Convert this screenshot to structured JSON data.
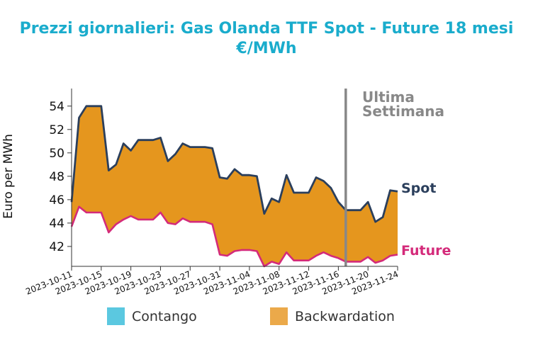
{
  "chart_data": {
    "type": "area",
    "title_line1": "Prezzi giornalieri: Gas Olanda TTF Spot - Future 18 mesi",
    "title_line2": "€/MWh",
    "ylabel": "Euro per MWh",
    "xlabel": "",
    "ylim": [
      40.3,
      55.5
    ],
    "yticks": [
      42,
      44,
      46,
      48,
      50,
      52,
      54
    ],
    "xlim": [
      "2023-10-11",
      "2023-11-24"
    ],
    "xticks": [
      "2023-10-11",
      "2023-10-15",
      "2023-10-19",
      "2023-10-23",
      "2023-10-27",
      "2023-10-31",
      "2023-11-04",
      "2023-11-08",
      "2023-11-12",
      "2023-11-16",
      "2023-11-20",
      "2023-11-24"
    ],
    "series": [
      {
        "name": "Spot",
        "color": "#2b3f5c",
        "points": [
          [
            "2023-10-11",
            45.8
          ],
          [
            "2023-10-12",
            53.0
          ],
          [
            "2023-10-13",
            54.0
          ],
          [
            "2023-10-14",
            54.0
          ],
          [
            "2023-10-15",
            54.0
          ],
          [
            "2023-10-16",
            48.5
          ],
          [
            "2023-10-17",
            49.0
          ],
          [
            "2023-10-18",
            50.8
          ],
          [
            "2023-10-19",
            50.2
          ],
          [
            "2023-10-20",
            51.1
          ],
          [
            "2023-10-21",
            51.1
          ],
          [
            "2023-10-22",
            51.1
          ],
          [
            "2023-10-23",
            51.3
          ],
          [
            "2023-10-24",
            49.3
          ],
          [
            "2023-10-25",
            49.9
          ],
          [
            "2023-10-26",
            50.8
          ],
          [
            "2023-10-27",
            50.5
          ],
          [
            "2023-10-28",
            50.5
          ],
          [
            "2023-10-29",
            50.5
          ],
          [
            "2023-10-30",
            50.4
          ],
          [
            "2023-10-31",
            47.9
          ],
          [
            "2023-11-01",
            47.8
          ],
          [
            "2023-11-02",
            48.6
          ],
          [
            "2023-11-03",
            48.1
          ],
          [
            "2023-11-04",
            48.1
          ],
          [
            "2023-11-05",
            48.0
          ],
          [
            "2023-11-06",
            44.8
          ],
          [
            "2023-11-07",
            46.1
          ],
          [
            "2023-11-08",
            45.8
          ],
          [
            "2023-11-09",
            48.1
          ],
          [
            "2023-11-10",
            46.6
          ],
          [
            "2023-11-11",
            46.6
          ],
          [
            "2023-11-12",
            46.6
          ],
          [
            "2023-11-13",
            47.9
          ],
          [
            "2023-11-14",
            47.6
          ],
          [
            "2023-11-15",
            47.0
          ],
          [
            "2023-11-16",
            45.8
          ],
          [
            "2023-11-17",
            45.1
          ],
          [
            "2023-11-18",
            45.1
          ],
          [
            "2023-11-19",
            45.1
          ],
          [
            "2023-11-20",
            45.8
          ],
          [
            "2023-11-21",
            44.1
          ],
          [
            "2023-11-22",
            44.5
          ],
          [
            "2023-11-23",
            46.8
          ],
          [
            "2023-11-24",
            46.7
          ]
        ]
      },
      {
        "name": "Future",
        "color": "#d42a7a",
        "points": [
          [
            "2023-10-11",
            43.7
          ],
          [
            "2023-10-12",
            45.4
          ],
          [
            "2023-10-13",
            44.9
          ],
          [
            "2023-10-14",
            44.9
          ],
          [
            "2023-10-15",
            44.9
          ],
          [
            "2023-10-16",
            43.2
          ],
          [
            "2023-10-17",
            43.9
          ],
          [
            "2023-10-18",
            44.3
          ],
          [
            "2023-10-19",
            44.6
          ],
          [
            "2023-10-20",
            44.3
          ],
          [
            "2023-10-21",
            44.3
          ],
          [
            "2023-10-22",
            44.3
          ],
          [
            "2023-10-23",
            44.9
          ],
          [
            "2023-10-24",
            44.0
          ],
          [
            "2023-10-25",
            43.9
          ],
          [
            "2023-10-26",
            44.4
          ],
          [
            "2023-10-27",
            44.1
          ],
          [
            "2023-10-28",
            44.1
          ],
          [
            "2023-10-29",
            44.1
          ],
          [
            "2023-10-30",
            43.9
          ],
          [
            "2023-10-31",
            41.3
          ],
          [
            "2023-11-01",
            41.2
          ],
          [
            "2023-11-02",
            41.6
          ],
          [
            "2023-11-03",
            41.7
          ],
          [
            "2023-11-04",
            41.7
          ],
          [
            "2023-11-05",
            41.6
          ],
          [
            "2023-11-06",
            40.3
          ],
          [
            "2023-11-07",
            40.7
          ],
          [
            "2023-11-08",
            40.5
          ],
          [
            "2023-11-09",
            41.5
          ],
          [
            "2023-11-10",
            40.8
          ],
          [
            "2023-11-11",
            40.8
          ],
          [
            "2023-11-12",
            40.8
          ],
          [
            "2023-11-13",
            41.2
          ],
          [
            "2023-11-14",
            41.5
          ],
          [
            "2023-11-15",
            41.2
          ],
          [
            "2023-11-16",
            41.0
          ],
          [
            "2023-11-17",
            40.7
          ],
          [
            "2023-11-18",
            40.7
          ],
          [
            "2023-11-19",
            40.7
          ],
          [
            "2023-11-20",
            41.1
          ],
          [
            "2023-11-21",
            40.6
          ],
          [
            "2023-11-22",
            40.8
          ],
          [
            "2023-11-23",
            41.2
          ],
          [
            "2023-11-24",
            41.3
          ]
        ]
      }
    ],
    "fill": {
      "name": "Backwardation",
      "color": "#e5961e"
    },
    "legend": {
      "placement": "bottom",
      "items": [
        {
          "name": "Contango",
          "color": "#5bc8e0"
        },
        {
          "name": "Backwardation",
          "color": "#eba94a"
        }
      ]
    },
    "annotation": {
      "line1": "Ultima",
      "line2": "Settimana",
      "x": "2023-11-17",
      "color": "#888888"
    },
    "grid": false
  }
}
